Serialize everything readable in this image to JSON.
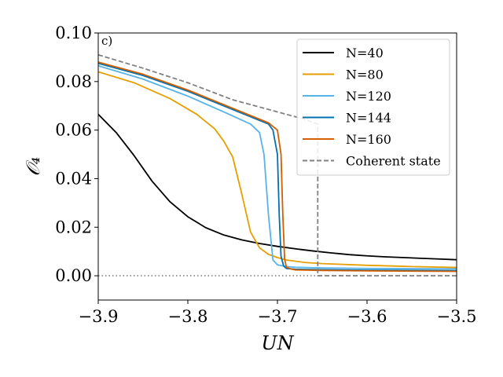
{
  "chart_data": {
    "type": "line",
    "panel_label": "c)",
    "title": "",
    "xlabel": "UN",
    "ylabel": "𝒪₄",
    "xlim": [
      -3.9,
      -3.5
    ],
    "ylim": [
      -0.01,
      0.1
    ],
    "xticks": [
      -3.9,
      -3.8,
      -3.7,
      -3.6,
      -3.5
    ],
    "xtick_labels": [
      "−3.9",
      "−3.8",
      "−3.7",
      "−3.6",
      "−3.5"
    ],
    "yticks": [
      0.0,
      0.02,
      0.04,
      0.06,
      0.08,
      0.1
    ],
    "ytick_labels": [
      "0.00",
      "0.02",
      "0.04",
      "0.06",
      "0.08",
      "0.10"
    ],
    "legend_position": "top-right",
    "reference_line": {
      "y": 0.0,
      "color": "#808080",
      "style": "dotted"
    },
    "series": [
      {
        "name": "N=40",
        "color": "#000000",
        "style": "solid",
        "x": [
          -3.9,
          -3.88,
          -3.86,
          -3.84,
          -3.82,
          -3.8,
          -3.78,
          -3.76,
          -3.74,
          -3.72,
          -3.7,
          -3.68,
          -3.66,
          -3.64,
          -3.62,
          -3.6,
          -3.58,
          -3.56,
          -3.54,
          -3.52,
          -3.5
        ],
        "y": [
          0.0665,
          0.059,
          0.0495,
          0.039,
          0.0305,
          0.0243,
          0.0198,
          0.0168,
          0.0148,
          0.0133,
          0.0121,
          0.0111,
          0.0102,
          0.0094,
          0.0087,
          0.0082,
          0.0078,
          0.0075,
          0.0072,
          0.0069,
          0.0066
        ]
      },
      {
        "name": "N=80",
        "color": "#E69F00",
        "style": "solid",
        "x": [
          -3.9,
          -3.86,
          -3.82,
          -3.79,
          -3.77,
          -3.76,
          -3.75,
          -3.74,
          -3.73,
          -3.72,
          -3.71,
          -3.7,
          -3.69,
          -3.67,
          -3.65,
          -3.6,
          -3.55,
          -3.5
        ],
        "y": [
          0.084,
          0.0795,
          0.073,
          0.0665,
          0.0605,
          0.0555,
          0.049,
          0.034,
          0.018,
          0.0115,
          0.0088,
          0.0075,
          0.0065,
          0.0055,
          0.005,
          0.0043,
          0.0038,
          0.0034
        ]
      },
      {
        "name": "N=120",
        "color": "#56B4E9",
        "style": "solid",
        "x": [
          -3.9,
          -3.85,
          -3.8,
          -3.76,
          -3.73,
          -3.72,
          -3.715,
          -3.71,
          -3.705,
          -3.7,
          -3.69,
          -3.68,
          -3.65,
          -3.6,
          -3.5
        ],
        "y": [
          0.0865,
          0.081,
          0.074,
          0.0675,
          0.0625,
          0.059,
          0.05,
          0.025,
          0.0065,
          0.0045,
          0.0038,
          0.0035,
          0.0032,
          0.003,
          0.0028
        ]
      },
      {
        "name": "N=144",
        "color": "#0072B2",
        "style": "solid",
        "x": [
          -3.9,
          -3.85,
          -3.8,
          -3.75,
          -3.71,
          -3.705,
          -3.7,
          -3.698,
          -3.696,
          -3.693,
          -3.69,
          -3.68,
          -3.65,
          -3.6,
          -3.5
        ],
        "y": [
          0.0875,
          0.0825,
          0.076,
          0.0685,
          0.0625,
          0.06,
          0.05,
          0.025,
          0.008,
          0.004,
          0.003,
          0.0027,
          0.0025,
          0.0023,
          0.0021
        ]
      },
      {
        "name": "N=160",
        "color": "#D55E00",
        "style": "solid",
        "x": [
          -3.9,
          -3.85,
          -3.8,
          -3.75,
          -3.71,
          -3.7,
          -3.696,
          -3.694,
          -3.692,
          -3.69,
          -3.685,
          -3.68,
          -3.65,
          -3.6,
          -3.5
        ],
        "y": [
          0.088,
          0.083,
          0.0765,
          0.069,
          0.063,
          0.06,
          0.05,
          0.025,
          0.007,
          0.0035,
          0.0028,
          0.0024,
          0.0022,
          0.002,
          0.0018
        ]
      },
      {
        "name": "Coherent state",
        "color": "#808080",
        "style": "dashed",
        "x": [
          -3.9,
          -3.85,
          -3.8,
          -3.75,
          -3.7,
          -3.67,
          -3.655,
          -3.655,
          -3.6,
          -3.5
        ],
        "y": [
          0.091,
          0.0855,
          0.0795,
          0.0725,
          0.0675,
          0.0645,
          0.0625,
          0.0,
          0.0,
          0.0
        ]
      }
    ]
  }
}
